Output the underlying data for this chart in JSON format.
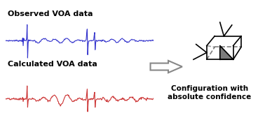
{
  "title_observed": "Observed VOA data",
  "title_calculated": "Calculated VOA data",
  "title_right": "Configuration with\nabsolute confidence",
  "blue_color": "#3333cc",
  "red_color": "#cc3333",
  "arrow_color": "#aaaaaa",
  "background": "#ffffff",
  "fig_width": 3.78,
  "fig_height": 1.82
}
